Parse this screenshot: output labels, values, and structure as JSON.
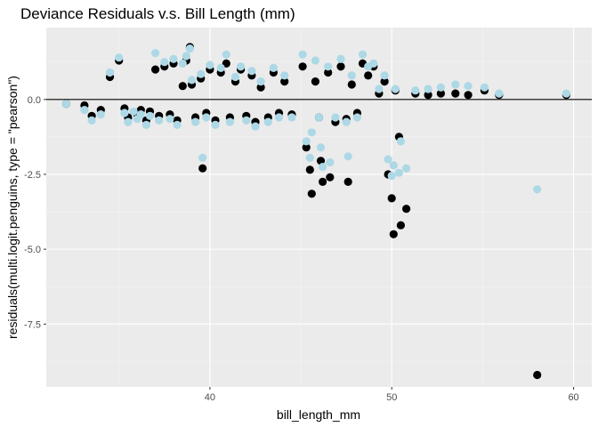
{
  "chart_data": {
    "type": "scatter",
    "title": "Deviance Residuals v.s. Bill Length (mm)",
    "xlabel": "bill_length_mm",
    "ylabel": "residuals(multi.logit.penguins, type = \"pearson\")",
    "xlim": [
      31,
      61
    ],
    "ylim": [
      -9.6,
      2.4
    ],
    "x_ticks": [
      40,
      50,
      60
    ],
    "x_tick_labels": [
      "40",
      "50",
      "60"
    ],
    "y_ticks": [
      0,
      -2.5,
      -5,
      -7.5
    ],
    "y_tick_labels": [
      "0.0",
      "-2.5",
      "-5.0",
      "-7.5"
    ],
    "reference_line_y": 0,
    "grid": true,
    "legend": "none",
    "colors": {
      "panel": "#ebebeb",
      "grid_major": "#ffffff",
      "black_series": "#000000",
      "blue_series": "#add8e6",
      "reference_line": "#000000"
    },
    "series": [
      {
        "color": "#000000",
        "points": [
          [
            32.1,
            -0.15
          ],
          [
            33.1,
            -0.2
          ],
          [
            33.5,
            -0.55
          ],
          [
            34.0,
            -0.35
          ],
          [
            34.5,
            0.75
          ],
          [
            35.0,
            1.3
          ],
          [
            35.3,
            -0.3
          ],
          [
            35.5,
            -0.6
          ],
          [
            36.0,
            -0.5
          ],
          [
            36.2,
            -0.35
          ],
          [
            36.5,
            -0.7
          ],
          [
            36.7,
            -0.4
          ],
          [
            37.0,
            1.0
          ],
          [
            37.2,
            -0.55
          ],
          [
            37.5,
            1.1
          ],
          [
            37.8,
            -0.5
          ],
          [
            38.0,
            1.2
          ],
          [
            38.2,
            -0.7
          ],
          [
            38.5,
            0.45
          ],
          [
            38.7,
            1.3
          ],
          [
            38.9,
            1.75
          ],
          [
            39.0,
            0.5
          ],
          [
            39.2,
            -0.6
          ],
          [
            39.5,
            0.7
          ],
          [
            39.6,
            -2.3
          ],
          [
            39.8,
            -0.45
          ],
          [
            40.0,
            1.0
          ],
          [
            40.3,
            -0.7
          ],
          [
            40.6,
            0.9
          ],
          [
            40.9,
            1.2
          ],
          [
            41.1,
            -0.6
          ],
          [
            41.4,
            0.6
          ],
          [
            41.7,
            1.0
          ],
          [
            42.0,
            -0.55
          ],
          [
            42.3,
            0.8
          ],
          [
            42.5,
            -0.75
          ],
          [
            42.8,
            0.4
          ],
          [
            43.2,
            -0.6
          ],
          [
            43.5,
            0.9
          ],
          [
            43.8,
            -0.45
          ],
          [
            44.1,
            0.6
          ],
          [
            44.5,
            -0.5
          ],
          [
            45.1,
            1.1
          ],
          [
            45.3,
            -1.6
          ],
          [
            45.5,
            -2.35
          ],
          [
            45.6,
            -3.15
          ],
          [
            45.8,
            0.6
          ],
          [
            46.0,
            -0.6
          ],
          [
            46.1,
            -2.05
          ],
          [
            46.2,
            -2.75
          ],
          [
            46.5,
            0.9
          ],
          [
            46.6,
            -2.6
          ],
          [
            46.9,
            -0.75
          ],
          [
            47.2,
            1.1
          ],
          [
            47.5,
            -0.65
          ],
          [
            47.6,
            -2.75
          ],
          [
            47.8,
            0.5
          ],
          [
            48.1,
            -0.45
          ],
          [
            48.4,
            1.2
          ],
          [
            48.7,
            0.8
          ],
          [
            49.0,
            1.1
          ],
          [
            49.3,
            0.2
          ],
          [
            49.6,
            0.6
          ],
          [
            49.8,
            -2.5
          ],
          [
            50.0,
            -3.3
          ],
          [
            50.1,
            -4.5
          ],
          [
            50.2,
            0.3
          ],
          [
            50.4,
            -1.25
          ],
          [
            50.5,
            -4.2
          ],
          [
            50.8,
            -3.65
          ],
          [
            51.3,
            0.2
          ],
          [
            52.0,
            0.15
          ],
          [
            52.7,
            0.2
          ],
          [
            53.5,
            0.2
          ],
          [
            54.2,
            0.15
          ],
          [
            55.1,
            0.3
          ],
          [
            55.9,
            0.15
          ],
          [
            58.0,
            -9.2
          ],
          [
            59.6,
            0.15
          ]
        ]
      },
      {
        "color": "#add8e6",
        "points": [
          [
            32.1,
            -0.15
          ],
          [
            33.1,
            -0.35
          ],
          [
            33.5,
            -0.7
          ],
          [
            34.0,
            -0.5
          ],
          [
            34.5,
            0.9
          ],
          [
            35.0,
            1.4
          ],
          [
            35.3,
            -0.45
          ],
          [
            35.5,
            -0.75
          ],
          [
            35.8,
            -0.4
          ],
          [
            36.0,
            -0.65
          ],
          [
            36.2,
            -0.5
          ],
          [
            36.5,
            -0.85
          ],
          [
            36.7,
            -0.55
          ],
          [
            37.0,
            1.55
          ],
          [
            37.2,
            -0.7
          ],
          [
            37.5,
            1.25
          ],
          [
            37.8,
            -0.65
          ],
          [
            38.0,
            1.35
          ],
          [
            38.2,
            -0.85
          ],
          [
            38.5,
            1.2
          ],
          [
            38.7,
            1.45
          ],
          [
            38.9,
            1.7
          ],
          [
            39.0,
            0.65
          ],
          [
            39.2,
            -0.75
          ],
          [
            39.5,
            0.85
          ],
          [
            39.6,
            -1.95
          ],
          [
            39.8,
            -0.6
          ],
          [
            40.0,
            1.15
          ],
          [
            40.3,
            -0.85
          ],
          [
            40.6,
            1.05
          ],
          [
            40.9,
            1.5
          ],
          [
            41.1,
            -0.75
          ],
          [
            41.4,
            0.75
          ],
          [
            41.7,
            1.1
          ],
          [
            42.0,
            -0.7
          ],
          [
            42.3,
            0.95
          ],
          [
            42.5,
            -0.9
          ],
          [
            42.8,
            0.6
          ],
          [
            43.2,
            -0.75
          ],
          [
            43.5,
            1.05
          ],
          [
            43.8,
            -0.6
          ],
          [
            44.1,
            0.8
          ],
          [
            44.5,
            -0.6
          ],
          [
            45.1,
            1.5
          ],
          [
            45.3,
            -1.4
          ],
          [
            45.5,
            -1.95
          ],
          [
            45.6,
            -1.1
          ],
          [
            45.8,
            1.3
          ],
          [
            46.0,
            -0.6
          ],
          [
            46.1,
            -1.6
          ],
          [
            46.2,
            -2.25
          ],
          [
            46.5,
            1.1
          ],
          [
            46.6,
            -2.1
          ],
          [
            46.9,
            -0.6
          ],
          [
            47.2,
            1.35
          ],
          [
            47.5,
            -0.75
          ],
          [
            47.6,
            -1.9
          ],
          [
            47.8,
            0.8
          ],
          [
            48.1,
            -0.6
          ],
          [
            48.4,
            1.5
          ],
          [
            48.7,
            1.1
          ],
          [
            49.0,
            1.2
          ],
          [
            49.3,
            0.35
          ],
          [
            49.6,
            0.8
          ],
          [
            49.8,
            -2.0
          ],
          [
            50.0,
            -2.55
          ],
          [
            50.1,
            -2.2
          ],
          [
            50.2,
            0.35
          ],
          [
            50.4,
            -2.45
          ],
          [
            50.5,
            -1.4
          ],
          [
            50.8,
            -2.3
          ],
          [
            51.3,
            0.3
          ],
          [
            52.0,
            0.35
          ],
          [
            52.7,
            0.4
          ],
          [
            53.5,
            0.5
          ],
          [
            54.2,
            0.45
          ],
          [
            55.1,
            0.4
          ],
          [
            55.9,
            0.2
          ],
          [
            58.0,
            -3.0
          ],
          [
            59.6,
            0.2
          ]
        ]
      }
    ]
  }
}
